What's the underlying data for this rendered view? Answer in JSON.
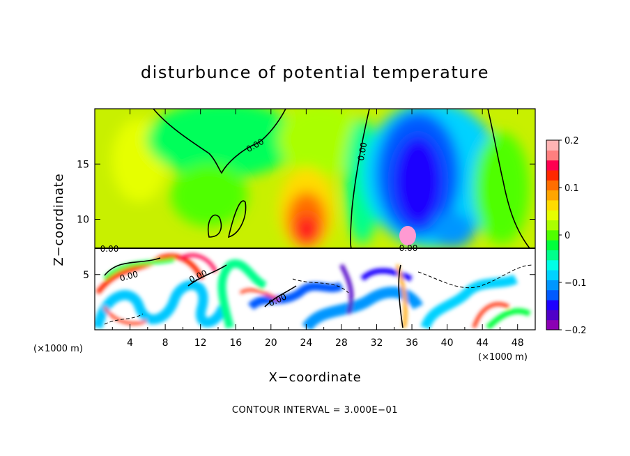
{
  "chart_data": {
    "type": "heatmap",
    "title": "disturbunce of potential temperature",
    "xlabel": "X−coordinate",
    "ylabel": "Z−coordinate",
    "x_unit": "(×1000 m)",
    "x_unit_secondary": "(×1000 m)",
    "xlim": [
      0,
      50
    ],
    "ylim": [
      0,
      20
    ],
    "x_ticks": [
      4,
      8,
      12,
      16,
      20,
      24,
      28,
      32,
      36,
      40,
      44,
      48
    ],
    "y_ticks": [
      5,
      10,
      15
    ],
    "colorbar": {
      "range": [
        -0.2,
        0.2
      ],
      "tick_values": [
        0.2,
        0.1,
        0,
        -0.1,
        -0.2
      ],
      "tick_labels": [
        "0.2",
        "0.1",
        "0",
        "−0.1",
        "−0.2"
      ],
      "colors": [
        "#8b00b4",
        "#5000c8",
        "#1e00ff",
        "#005aff",
        "#0096ff",
        "#00d2ff",
        "#00ffe6",
        "#00ff8c",
        "#00ff3c",
        "#50ff00",
        "#aaff00",
        "#e6ff00",
        "#ffdc00",
        "#ffa500",
        "#ff6e00",
        "#ff2800",
        "#ff0050",
        "#ff7f7f",
        "#ffb4b4"
      ]
    },
    "contour_labels": [
      "0.00",
      "0.00",
      "0.00",
      "0.00",
      "0.00",
      "0.00",
      "0.00"
    ],
    "footer": "CONTOUR INTERVAL = 3.000E−01"
  }
}
